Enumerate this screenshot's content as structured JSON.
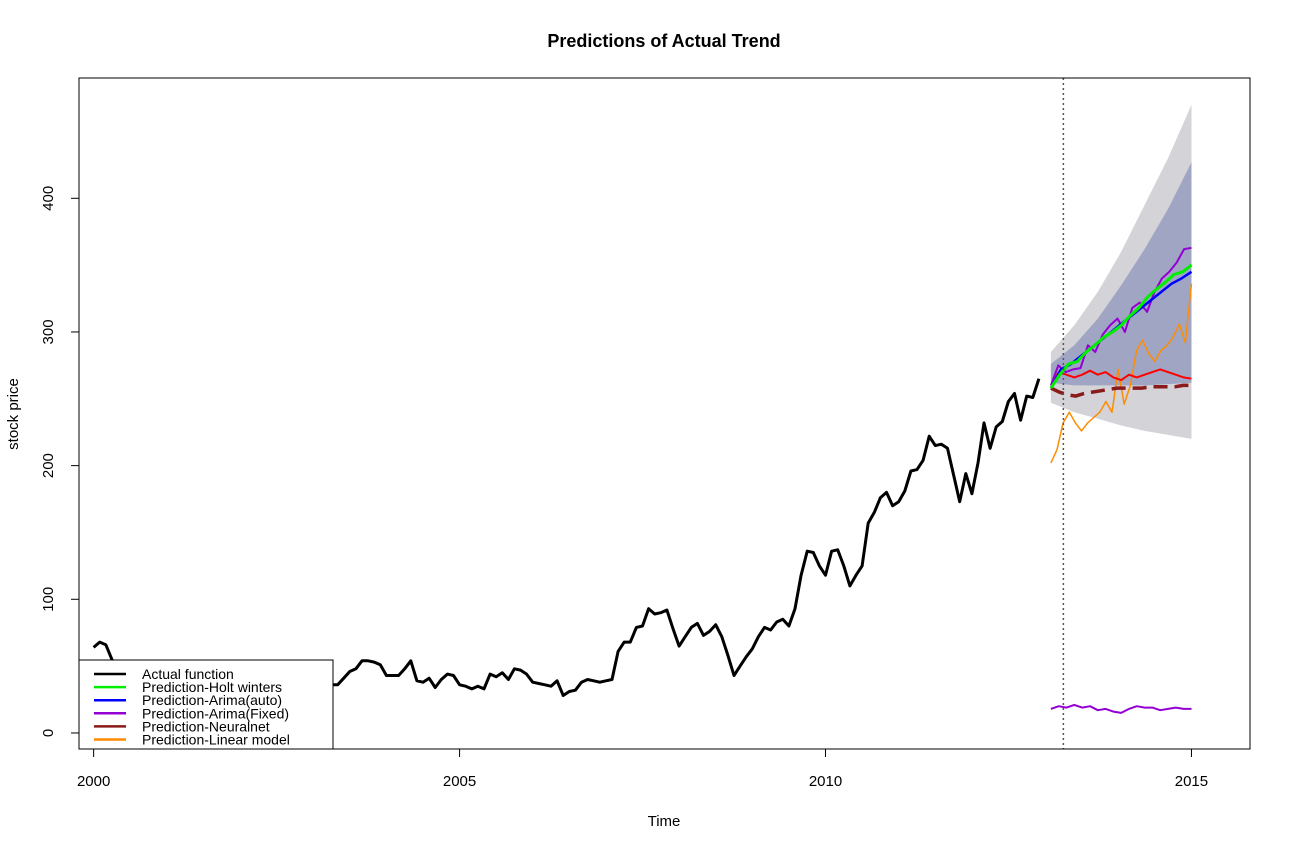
{
  "chart_data": {
    "type": "line",
    "title": "Predictions of Actual Trend",
    "xlabel": "Time",
    "ylabel": "stock price",
    "xlim": [
      1999.8,
      2015.8
    ],
    "ylim": [
      -12,
      490
    ],
    "x_ticks": [
      2000,
      2005,
      2010,
      2015
    ],
    "y_ticks": [
      0,
      100,
      200,
      300,
      400
    ],
    "forecast_origin": 2013.25,
    "legend_position": "bottom-left",
    "colors": {
      "actual": "#000000",
      "holt": "#00ee00",
      "arima_auto": "#0000ff",
      "arima_fixed": "#9400d3",
      "nnet": "#ff0000",
      "neuralnet": "#8b1a1a",
      "linear": "#ff8c00",
      "band_outer": "#d3d3d8",
      "band_inner": "#a1a5c4"
    },
    "legend": [
      {
        "label": "Actual function",
        "color": "#000000"
      },
      {
        "label": "Prediction-Holt winters",
        "color": "#00ee00"
      },
      {
        "label": "Prediction-Arima(auto)",
        "color": "#0000ff"
      },
      {
        "label": "Prediction-Arima(Fixed)",
        "color": "#9400d3"
      },
      {
        "label": "Prediction-Neuralnet",
        "color": "#8b1a1a"
      },
      {
        "label": "Prediction-Linear model",
        "color": "#ff8c00"
      }
    ],
    "actual": {
      "start": 2000.0,
      "step": 0.08333,
      "values": [
        64,
        68,
        66,
        55,
        48,
        43,
        40,
        38,
        36,
        35,
        34,
        33,
        33,
        31,
        30,
        29,
        28,
        27,
        27,
        26,
        25,
        25,
        25,
        24,
        23,
        22,
        22,
        21,
        21,
        21,
        21,
        21,
        21,
        21,
        21,
        22,
        22,
        26,
        29,
        36,
        36,
        41,
        46,
        48,
        54,
        54,
        53,
        51,
        43,
        43,
        43,
        48,
        54,
        39,
        38,
        41,
        34,
        40,
        44,
        43,
        36,
        35,
        33,
        35,
        33,
        44,
        42,
        45,
        40,
        48,
        47,
        44,
        38,
        37,
        36,
        35,
        39,
        28,
        31,
        32,
        38,
        40,
        39,
        38,
        39,
        40,
        61,
        68,
        68,
        79,
        80,
        93,
        89,
        90,
        92,
        78,
        65,
        72,
        79,
        82,
        73,
        76,
        81,
        72,
        58,
        43,
        50,
        57,
        63,
        72,
        79,
        77,
        83,
        85,
        80,
        93,
        118,
        136,
        135,
        125,
        118,
        136,
        137,
        125,
        110,
        118,
        125,
        157,
        165,
        176,
        180,
        170,
        173,
        181,
        196,
        197,
        204,
        222,
        215,
        216,
        213,
        193,
        173,
        194,
        179,
        202,
        232,
        213,
        229,
        233,
        248,
        254,
        234,
        252,
        251,
        265
      ]
    },
    "forecast_x": {
      "start": 2013.08,
      "end": 2015.0
    },
    "band_outer_upper": [
      285,
      305,
      330,
      360,
      395,
      430,
      470
    ],
    "band_outer_lower": [
      247,
      240,
      235,
      230,
      226,
      223,
      220
    ],
    "band_inner_upper": [
      276,
      290,
      310,
      335,
      362,
      392,
      427
    ],
    "band_inner_lower": [
      262,
      260,
      260,
      260,
      260,
      261,
      262
    ],
    "holt": [
      258,
      268,
      276,
      278,
      285,
      290,
      296,
      300,
      305,
      312,
      318,
      326,
      332,
      337,
      343,
      345,
      350
    ],
    "arima_auto": [
      258,
      272,
      276,
      282,
      288,
      294,
      300,
      306,
      312,
      318,
      324,
      330,
      336,
      340,
      345
    ],
    "arima_fixed_upper": [
      260,
      275,
      270,
      272,
      273,
      290,
      285,
      298,
      305,
      310,
      300,
      318,
      322,
      315,
      330,
      340,
      345,
      352,
      362,
      363
    ],
    "arima_fixed_lower": [
      18,
      20,
      19,
      21,
      19,
      20,
      17,
      18,
      16,
      15,
      18,
      20,
      19,
      19,
      17,
      18,
      19,
      18,
      18
    ],
    "nnet": [
      260,
      270,
      268,
      266,
      268,
      271,
      268,
      270,
      266,
      264,
      268,
      266,
      268,
      270,
      272,
      270,
      268,
      266,
      265
    ],
    "neuralnet": [
      258,
      255,
      253,
      252,
      254,
      255,
      256,
      257,
      258,
      258,
      258,
      258,
      259,
      259,
      259,
      259,
      260,
      260
    ],
    "linear": [
      202,
      212,
      232,
      240,
      232,
      226,
      232,
      236,
      240,
      248,
      240,
      272,
      246,
      260,
      286,
      294,
      284,
      278,
      286,
      290,
      296,
      306,
      292,
      336
    ]
  }
}
